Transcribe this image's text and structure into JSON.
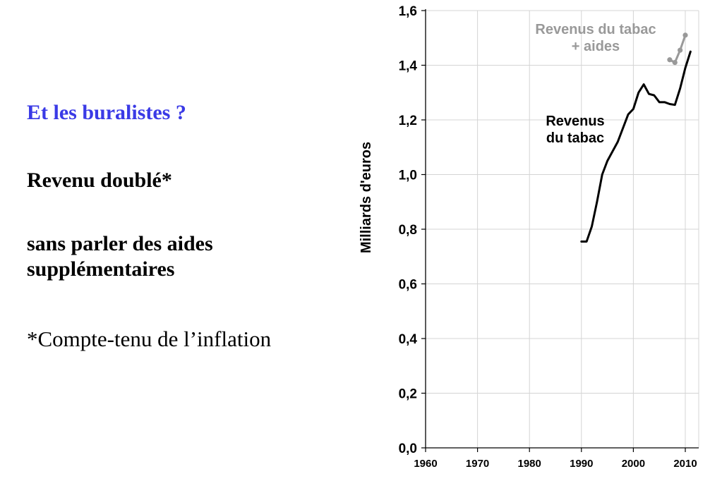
{
  "slide": {
    "heading": "Et les buralistes ?",
    "line1": "Revenu doublé*",
    "line2a": "sans parler des aides",
    "line2b": "supplémentaires",
    "footnote": "*Compte-tenu de l’inflation"
  },
  "colors": {
    "heading": "#3a3ae6",
    "series_tabac": "#000000",
    "series_aides": "#999999",
    "grid": "#d4d4d4"
  },
  "chart_data": {
    "type": "line",
    "title": "",
    "xlabel": "",
    "ylabel": "Milliards d'euros",
    "xlim": [
      1960,
      2012
    ],
    "ylim": [
      0,
      1.6
    ],
    "x_ticks": [
      1960,
      1970,
      1980,
      1990,
      2000,
      2010
    ],
    "x_tick_labels": [
      "1960",
      "1970",
      "1980",
      "1990",
      "2000",
      "2010"
    ],
    "y_ticks": [
      0,
      0.2,
      0.4,
      0.6,
      0.8,
      1.0,
      1.2,
      1.4,
      1.6
    ],
    "y_tick_labels": [
      "0,0",
      "0,2",
      "0,4",
      "0,6",
      "0,8",
      "1,0",
      "1,2",
      "1,4",
      "1,6"
    ],
    "grid": true,
    "series": [
      {
        "name": "Revenus du tabac",
        "label_lines": [
          "Revenus",
          "du tabac"
        ],
        "color": "#000000",
        "markers": false,
        "x": [
          1990,
          1991,
          1992,
          1993,
          1994,
          1995,
          1996,
          1997,
          1998,
          1999,
          2000,
          2001,
          2002,
          2003,
          2004,
          2005,
          2006,
          2007,
          2008,
          2009,
          2010,
          2011
        ],
        "y": [
          0.755,
          0.755,
          0.81,
          0.9,
          1.0,
          1.05,
          1.085,
          1.12,
          1.17,
          1.22,
          1.24,
          1.3,
          1.33,
          1.295,
          1.29,
          1.265,
          1.265,
          1.258,
          1.255,
          1.315,
          1.39,
          1.45
        ]
      },
      {
        "name": "Revenus du tabac + aides",
        "label_lines": [
          "Revenus du tabac",
          "+ aides"
        ],
        "color": "#999999",
        "markers": true,
        "x": [
          2007,
          2008,
          2009,
          2010
        ],
        "y": [
          1.42,
          1.41,
          1.455,
          1.51
        ]
      }
    ]
  }
}
